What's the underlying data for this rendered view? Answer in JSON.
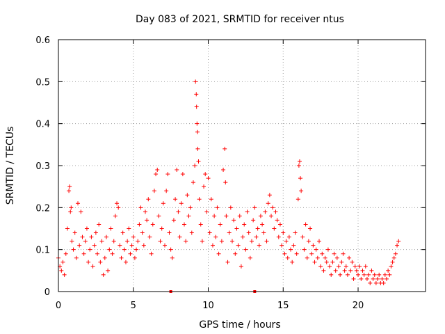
{
  "chart_data": {
    "type": "scatter",
    "title": "Day 083 of 2021, SRMTID for receiver ntus",
    "xlabel": "GPS time / hours",
    "ylabel": "SRMTID / TECUs",
    "xlim": [
      0,
      24.5
    ],
    "ylim": [
      0,
      0.6
    ],
    "xticks": [
      0,
      5,
      10,
      15,
      20
    ],
    "xtick_labels": [
      "0",
      "5",
      "10",
      "15",
      "20"
    ],
    "yticks": [
      0,
      0.1,
      0.2,
      0.3,
      0.4,
      0.5,
      0.6
    ],
    "ytick_labels": [
      "0",
      "0.1",
      "0.2",
      "0.3",
      "0.4",
      "0.5",
      "0.6"
    ],
    "grid": true,
    "marker": "plus",
    "color": "#ff0000",
    "series": [
      {
        "name": "SRMTID",
        "points": [
          [
            0.0,
            0.08
          ],
          [
            0.1,
            0.06
          ],
          [
            0.2,
            0.05
          ],
          [
            0.3,
            0.07
          ],
          [
            0.4,
            0.04
          ],
          [
            0.5,
            0.09
          ],
          [
            0.6,
            0.15
          ],
          [
            0.7,
            0.24
          ],
          [
            0.75,
            0.25
          ],
          [
            0.8,
            0.19
          ],
          [
            0.85,
            0.2
          ],
          [
            0.9,
            0.12
          ],
          [
            1.0,
            0.1
          ],
          [
            1.1,
            0.14
          ],
          [
            1.2,
            0.08
          ],
          [
            1.3,
            0.21
          ],
          [
            1.4,
            0.11
          ],
          [
            1.5,
            0.19
          ],
          [
            1.6,
            0.13
          ],
          [
            1.7,
            0.09
          ],
          [
            1.8,
            0.12
          ],
          [
            1.9,
            0.15
          ],
          [
            2.0,
            0.07
          ],
          [
            2.1,
            0.1
          ],
          [
            2.2,
            0.13
          ],
          [
            2.3,
            0.06
          ],
          [
            2.4,
            0.11
          ],
          [
            2.5,
            0.14
          ],
          [
            2.6,
            0.09
          ],
          [
            2.7,
            0.16
          ],
          [
            2.8,
            0.07
          ],
          [
            2.9,
            0.12
          ],
          [
            3.0,
            0.04
          ],
          [
            3.1,
            0.08
          ],
          [
            3.2,
            0.13
          ],
          [
            3.3,
            0.05
          ],
          [
            3.4,
            0.1
          ],
          [
            3.5,
            0.15
          ],
          [
            3.6,
            0.09
          ],
          [
            3.7,
            0.12
          ],
          [
            3.8,
            0.18
          ],
          [
            3.9,
            0.21
          ],
          [
            4.0,
            0.2
          ],
          [
            4.1,
            0.11
          ],
          [
            4.2,
            0.08
          ],
          [
            4.3,
            0.14
          ],
          [
            4.4,
            0.1
          ],
          [
            4.5,
            0.07
          ],
          [
            4.6,
            0.12
          ],
          [
            4.7,
            0.15
          ],
          [
            4.8,
            0.09
          ],
          [
            4.9,
            0.11
          ],
          [
            5.0,
            0.13
          ],
          [
            5.1,
            0.08
          ],
          [
            5.2,
            0.1
          ],
          [
            5.3,
            0.12
          ],
          [
            5.4,
            0.16
          ],
          [
            5.5,
            0.2
          ],
          [
            5.6,
            0.14
          ],
          [
            5.7,
            0.11
          ],
          [
            5.8,
            0.19
          ],
          [
            5.9,
            0.17
          ],
          [
            6.0,
            0.22
          ],
          [
            6.1,
            0.13
          ],
          [
            6.2,
            0.09
          ],
          [
            6.3,
            0.16
          ],
          [
            6.4,
            0.24
          ],
          [
            6.5,
            0.28
          ],
          [
            6.6,
            0.29
          ],
          [
            6.7,
            0.18
          ],
          [
            6.8,
            0.12
          ],
          [
            6.9,
            0.15
          ],
          [
            7.0,
            0.21
          ],
          [
            7.1,
            0.11
          ],
          [
            7.2,
            0.24
          ],
          [
            7.3,
            0.28
          ],
          [
            7.4,
            0.14
          ],
          [
            7.5,
            0.1
          ],
          [
            7.6,
            0.08
          ],
          [
            7.7,
            0.17
          ],
          [
            7.8,
            0.22
          ],
          [
            7.9,
            0.29
          ],
          [
            8.0,
            0.19
          ],
          [
            8.1,
            0.13
          ],
          [
            8.2,
            0.21
          ],
          [
            8.3,
            0.28
          ],
          [
            8.4,
            0.16
          ],
          [
            8.5,
            0.12
          ],
          [
            8.6,
            0.23
          ],
          [
            8.7,
            0.18
          ],
          [
            8.8,
            0.2
          ],
          [
            8.9,
            0.14
          ],
          [
            9.0,
            0.26
          ],
          [
            9.1,
            0.3
          ],
          [
            9.15,
            0.5
          ],
          [
            9.2,
            0.47
          ],
          [
            9.22,
            0.44
          ],
          [
            9.25,
            0.4
          ],
          [
            9.28,
            0.38
          ],
          [
            9.3,
            0.34
          ],
          [
            9.35,
            0.31
          ],
          [
            9.4,
            0.22
          ],
          [
            9.5,
            0.16
          ],
          [
            9.6,
            0.12
          ],
          [
            9.7,
            0.25
          ],
          [
            9.8,
            0.28
          ],
          [
            9.9,
            0.19
          ],
          [
            10.0,
            0.27
          ],
          [
            10.1,
            0.14
          ],
          [
            10.2,
            0.22
          ],
          [
            10.3,
            0.11
          ],
          [
            10.4,
            0.18
          ],
          [
            10.5,
            0.13
          ],
          [
            10.6,
            0.2
          ],
          [
            10.7,
            0.09
          ],
          [
            10.8,
            0.16
          ],
          [
            10.9,
            0.12
          ],
          [
            11.0,
            0.29
          ],
          [
            11.1,
            0.34
          ],
          [
            11.15,
            0.26
          ],
          [
            11.2,
            0.18
          ],
          [
            11.3,
            0.07
          ],
          [
            11.4,
            0.14
          ],
          [
            11.5,
            0.2
          ],
          [
            11.6,
            0.12
          ],
          [
            11.7,
            0.17
          ],
          [
            11.8,
            0.09
          ],
          [
            11.9,
            0.15
          ],
          [
            12.0,
            0.11
          ],
          [
            12.1,
            0.18
          ],
          [
            12.2,
            0.06
          ],
          [
            12.3,
            0.13
          ],
          [
            12.4,
            0.16
          ],
          [
            12.5,
            0.1
          ],
          [
            12.6,
            0.19
          ],
          [
            12.7,
            0.14
          ],
          [
            12.8,
            0.08
          ],
          [
            12.9,
            0.12
          ],
          [
            13.0,
            0.17
          ],
          [
            13.1,
            0.2
          ],
          [
            13.2,
            0.13
          ],
          [
            13.3,
            0.15
          ],
          [
            13.4,
            0.11
          ],
          [
            13.5,
            0.18
          ],
          [
            13.6,
            0.16
          ],
          [
            13.7,
            0.14
          ],
          [
            13.8,
            0.19
          ],
          [
            13.9,
            0.12
          ],
          [
            14.0,
            0.21
          ],
          [
            14.1,
            0.23
          ],
          [
            14.2,
            0.18
          ],
          [
            14.3,
            0.2
          ],
          [
            14.4,
            0.15
          ],
          [
            14.5,
            0.19
          ],
          [
            14.6,
            0.17
          ],
          [
            14.7,
            0.13
          ],
          [
            14.8,
            0.16
          ],
          [
            14.9,
            0.11
          ],
          [
            15.0,
            0.14
          ],
          [
            15.1,
            0.09
          ],
          [
            15.2,
            0.12
          ],
          [
            15.3,
            0.08
          ],
          [
            15.4,
            0.13
          ],
          [
            15.5,
            0.1
          ],
          [
            15.6,
            0.07
          ],
          [
            15.7,
            0.11
          ],
          [
            15.8,
            0.14
          ],
          [
            15.9,
            0.09
          ],
          [
            16.0,
            0.22
          ],
          [
            16.05,
            0.3
          ],
          [
            16.1,
            0.31
          ],
          [
            16.15,
            0.27
          ],
          [
            16.2,
            0.24
          ],
          [
            16.3,
            0.13
          ],
          [
            16.4,
            0.1
          ],
          [
            16.5,
            0.16
          ],
          [
            16.6,
            0.08
          ],
          [
            16.7,
            0.12
          ],
          [
            16.8,
            0.15
          ],
          [
            16.9,
            0.09
          ],
          [
            17.0,
            0.11
          ],
          [
            17.1,
            0.07
          ],
          [
            17.2,
            0.1
          ],
          [
            17.3,
            0.08
          ],
          [
            17.4,
            0.12
          ],
          [
            17.5,
            0.06
          ],
          [
            17.6,
            0.09
          ],
          [
            17.7,
            0.05
          ],
          [
            17.8,
            0.08
          ],
          [
            17.9,
            0.07
          ],
          [
            18.0,
            0.1
          ],
          [
            18.1,
            0.06
          ],
          [
            18.2,
            0.04
          ],
          [
            18.3,
            0.07
          ],
          [
            18.4,
            0.09
          ],
          [
            18.5,
            0.05
          ],
          [
            18.6,
            0.08
          ],
          [
            18.7,
            0.06
          ],
          [
            18.8,
            0.04
          ],
          [
            18.9,
            0.07
          ],
          [
            19.0,
            0.09
          ],
          [
            19.1,
            0.05
          ],
          [
            19.2,
            0.06
          ],
          [
            19.3,
            0.04
          ],
          [
            19.4,
            0.08
          ],
          [
            19.5,
            0.05
          ],
          [
            19.6,
            0.07
          ],
          [
            19.7,
            0.03
          ],
          [
            19.8,
            0.06
          ],
          [
            19.9,
            0.05
          ],
          [
            20.0,
            0.04
          ],
          [
            20.1,
            0.06
          ],
          [
            20.2,
            0.03
          ],
          [
            20.3,
            0.05
          ],
          [
            20.4,
            0.04
          ],
          [
            20.5,
            0.06
          ],
          [
            20.6,
            0.03
          ],
          [
            20.7,
            0.04
          ],
          [
            20.8,
            0.02
          ],
          [
            20.9,
            0.05
          ],
          [
            21.0,
            0.03
          ],
          [
            21.1,
            0.04
          ],
          [
            21.2,
            0.02
          ],
          [
            21.3,
            0.03
          ],
          [
            21.4,
            0.04
          ],
          [
            21.5,
            0.02
          ],
          [
            21.6,
            0.03
          ],
          [
            21.7,
            0.02
          ],
          [
            21.8,
            0.04
          ],
          [
            21.9,
            0.03
          ],
          [
            22.0,
            0.05
          ],
          [
            22.1,
            0.04
          ],
          [
            22.2,
            0.06
          ],
          [
            22.3,
            0.07
          ],
          [
            22.4,
            0.08
          ],
          [
            22.5,
            0.09
          ],
          [
            22.6,
            0.11
          ],
          [
            22.7,
            0.12
          ]
        ]
      }
    ],
    "bottom_markers": [
      7.5,
      13.1
    ]
  }
}
